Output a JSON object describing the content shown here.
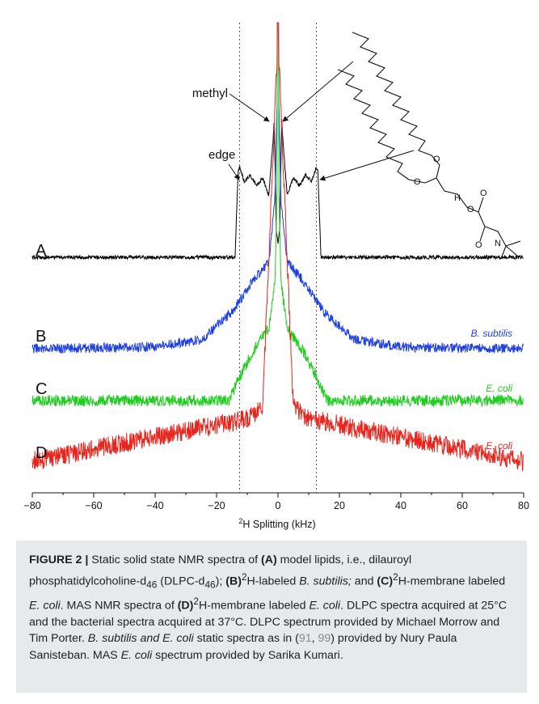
{
  "chart_data": {
    "type": "line",
    "xlabel_prefix": "2",
    "xlabel": "H Splitting (kHz)",
    "xlim": [
      -80,
      80
    ],
    "xticks": [
      -80,
      -60,
      -40,
      -20,
      0,
      20,
      40,
      60,
      80
    ],
    "edge_guides_x": [
      -12.5,
      12.5
    ],
    "annotations": {
      "methyl": "methyl",
      "edge": "edge"
    },
    "series": [
      {
        "label": "A",
        "color": "#000000",
        "x": [
          -80,
          -14,
          -13,
          -12.5,
          -11,
          -9,
          -7,
          -5,
          -3,
          -1.6,
          -1.2,
          -0.6,
          0,
          0.6,
          1.2,
          1.6,
          3,
          5,
          7,
          9,
          11,
          12.5,
          13,
          14,
          80
        ],
        "y": [
          0,
          0,
          0.62,
          0.66,
          0.55,
          0.6,
          0.52,
          0.58,
          0.45,
          0.85,
          1.0,
          0.2,
          0.1,
          0.2,
          1.0,
          0.85,
          0.45,
          0.58,
          0.52,
          0.6,
          0.55,
          0.66,
          0.62,
          0,
          0
        ]
      },
      {
        "label": "B",
        "species": "B. subtilis",
        "color": "#1f3fe0",
        "x": [
          -80,
          -40,
          -25,
          -15,
          -8,
          -3,
          -1,
          0,
          1,
          3,
          8,
          15,
          25,
          40,
          80
        ],
        "y": [
          0,
          0.02,
          0.1,
          0.4,
          0.75,
          0.95,
          1.6,
          3.2,
          1.6,
          0.95,
          0.75,
          0.4,
          0.1,
          0.02,
          0
        ]
      },
      {
        "label": "C",
        "species": "E. coli",
        "color": "#1fcc1f",
        "x": [
          -80,
          -16,
          -12,
          -8,
          -3,
          -1,
          0,
          1,
          3,
          8,
          12,
          16,
          80
        ],
        "y": [
          0,
          0,
          0.3,
          0.55,
          0.8,
          1.3,
          2.8,
          1.3,
          0.8,
          0.55,
          0.3,
          0,
          0
        ]
      },
      {
        "label": "D",
        "species": "E. coli",
        "color": "#e8241c",
        "x": [
          -80,
          -10,
          -5,
          0,
          5,
          10,
          80
        ],
        "y": [
          0,
          0.35,
          0.45,
          3.5,
          0.45,
          0.35,
          0
        ]
      }
    ]
  },
  "caption": {
    "fig_label": "FIGURE 2 |",
    "t1": " Static solid state NMR spectra of ",
    "t1b": "(A)",
    "t2": " model lipids, i.e., dilauroyl phosphatidylcoholine-d",
    "sub46a": "46",
    "t3": " (DLPC-d",
    "sub46b": "46",
    "t4": "); ",
    "t4b": "(B)",
    "sup2a": "2",
    "t5": "H-labeled ",
    "t5i": "B. subtilis;",
    "t6": " and ",
    "t6b": "(C)",
    "sup2b": "2",
    "t7": "H-membrane labeled ",
    "t7i": "E. coli",
    "t8": ". MAS NMR spectra of ",
    "t8b": "(D)",
    "sup2c": "2",
    "t9": "H-membrane labeled ",
    "t9i": "E. coli",
    "t10": ". DLPC spectra acquired at 25°C and the bacterial spectra acquired at 37°C. DLPC spectrum provided by Michael Morrow and Tim Porter. ",
    "t10i": "B. subtilis and E. coli",
    "t11": " static spectra as in (",
    "ref1": "91",
    "t12": ", ",
    "ref2": "99",
    "t13": ") provided by Nury Paula Sanisteban. MAS ",
    "t13i": "E. coli",
    "t14": " spectrum provided by Sarika Kumari."
  }
}
